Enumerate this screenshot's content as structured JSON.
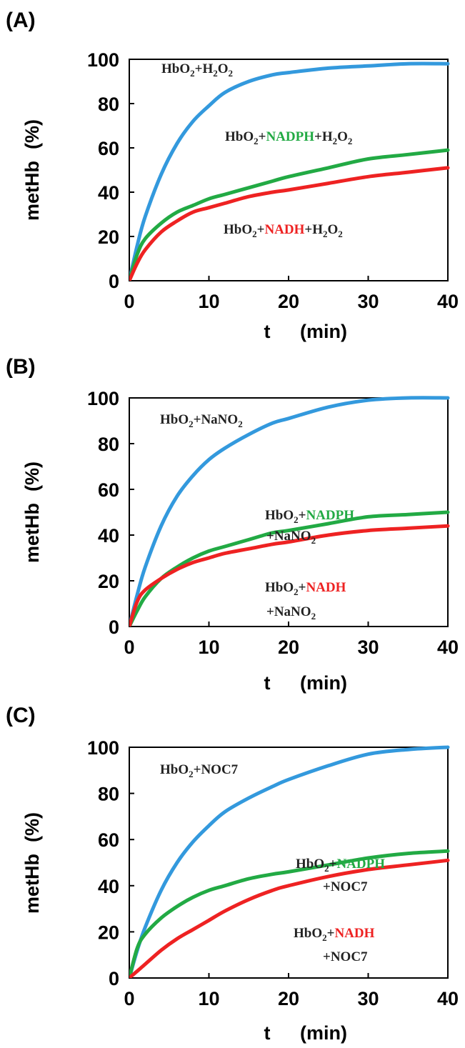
{
  "colors": {
    "H2O2_only": "#3399dd",
    "NADPH": "#22aa44",
    "NADH": "#ee2222",
    "nadph_text": "#22aa44",
    "nadh_text": "#ee2222",
    "annotation_text": "#222222"
  },
  "chart_data": [
    {
      "type": "line",
      "panel_label": "(A)",
      "xlabel": "t (min)",
      "ylabel": "metHb (%)",
      "xlim": [
        0,
        40
      ],
      "ylim": [
        0,
        100
      ],
      "xticks": [
        "0",
        "10",
        "20",
        "30",
        "40"
      ],
      "yticks": [
        "0",
        "20",
        "40",
        "60",
        "80",
        "100"
      ],
      "x": [
        0,
        1,
        2,
        4,
        6,
        8,
        10,
        12,
        15,
        18,
        20,
        25,
        30,
        35,
        40
      ],
      "series": [
        {
          "name": "HbO2+H2O2",
          "color": "H2O2_only",
          "values": [
            0,
            16,
            29,
            48,
            62,
            72,
            79,
            85,
            90,
            93,
            94,
            96,
            97,
            98,
            98
          ]
        },
        {
          "name": "HbO2+NADPH+H2O2",
          "color": "NADPH",
          "values": [
            0,
            12,
            19,
            26,
            31,
            34,
            37,
            39,
            42,
            45,
            47,
            51,
            55,
            57,
            59
          ]
        },
        {
          "name": "HbO2+NADH+H2O2",
          "color": "NADH",
          "values": [
            0,
            8,
            14,
            22,
            27,
            31,
            33,
            35,
            38,
            40,
            41,
            44,
            47,
            49,
            51
          ]
        }
      ],
      "annotations": [
        {
          "parts": [
            {
              "t": "HbO"
            },
            {
              "t": "2",
              "sub": true
            },
            {
              "t": "+H"
            },
            {
              "t": "2",
              "sub": true
            },
            {
              "t": "O"
            },
            {
              "t": "2",
              "sub": true
            }
          ]
        },
        {
          "parts": [
            {
              "t": "HbO"
            },
            {
              "t": "2",
              "sub": true
            },
            {
              "t": "+"
            },
            {
              "t": "NADPH",
              "color": "nadph_text"
            },
            {
              "t": "+H"
            },
            {
              "t": "2",
              "sub": true
            },
            {
              "t": "O"
            },
            {
              "t": "2",
              "sub": true
            }
          ]
        },
        {
          "parts": [
            {
              "t": "HbO"
            },
            {
              "t": "2",
              "sub": true
            },
            {
              "t": "+"
            },
            {
              "t": "NADH",
              "color": "nadh_text"
            },
            {
              "t": "+H"
            },
            {
              "t": "2",
              "sub": true
            },
            {
              "t": "O"
            },
            {
              "t": "2",
              "sub": true
            }
          ]
        }
      ]
    },
    {
      "type": "line",
      "panel_label": "(B)",
      "xlabel": "t (min)",
      "ylabel": "metHb (%)",
      "xlim": [
        0,
        40
      ],
      "ylim": [
        0,
        100
      ],
      "xticks": [
        "0",
        "10",
        "20",
        "30",
        "40"
      ],
      "yticks": [
        "0",
        "20",
        "40",
        "60",
        "80",
        "100"
      ],
      "x": [
        0,
        1,
        2,
        4,
        6,
        8,
        10,
        12,
        15,
        18,
        20,
        25,
        30,
        35,
        40
      ],
      "series": [
        {
          "name": "HbO2+NaNO2",
          "color": "H2O2_only",
          "values": [
            0,
            14,
            26,
            44,
            57,
            66,
            73,
            78,
            84,
            89,
            91,
            96,
            99,
            100,
            100
          ]
        },
        {
          "name": "HbO2+NADPH+NaNO2",
          "color": "NADPH",
          "values": [
            0,
            7,
            13,
            21,
            26,
            30,
            33,
            35,
            38,
            41,
            42,
            45,
            48,
            49,
            50
          ]
        },
        {
          "name": "HbO2+NADH+NaNO2",
          "color": "NADH",
          "values": [
            0,
            11,
            16,
            21,
            25,
            28,
            30,
            32,
            34,
            36,
            37,
            40,
            42,
            43,
            44
          ]
        }
      ],
      "annotations": [
        {
          "parts": [
            {
              "t": "HbO"
            },
            {
              "t": "2",
              "sub": true
            },
            {
              "t": "+NaNO"
            },
            {
              "t": "2",
              "sub": true
            }
          ]
        },
        {
          "parts": [
            {
              "t": "HbO"
            },
            {
              "t": "2",
              "sub": true
            },
            {
              "t": "+"
            },
            {
              "t": "NADPH",
              "color": "nadph_text"
            }
          ]
        },
        {
          "parts": [
            {
              "t": "+NaNO"
            },
            {
              "t": "2",
              "sub": true
            }
          ]
        },
        {
          "parts": [
            {
              "t": "HbO"
            },
            {
              "t": "2",
              "sub": true
            },
            {
              "t": "+"
            },
            {
              "t": "NADH",
              "color": "nadh_text"
            }
          ]
        },
        {
          "parts": [
            {
              "t": "+NaNO"
            },
            {
              "t": "2",
              "sub": true
            }
          ]
        }
      ]
    },
    {
      "type": "line",
      "panel_label": "(C)",
      "xlabel": "t (min)",
      "ylabel": "metHb (%)",
      "xlim": [
        0,
        40
      ],
      "ylim": [
        0,
        100
      ],
      "xticks": [
        "0",
        "10",
        "20",
        "30",
        "40"
      ],
      "yticks": [
        "0",
        "20",
        "40",
        "60",
        "80",
        "100"
      ],
      "x": [
        0,
        1,
        2,
        4,
        6,
        8,
        10,
        12,
        15,
        18,
        20,
        25,
        30,
        35,
        40
      ],
      "series": [
        {
          "name": "HbO2+NOC7",
          "color": "H2O2_only",
          "values": [
            0,
            12,
            22,
            38,
            50,
            59,
            66,
            72,
            78,
            83,
            86,
            92,
            97,
            99,
            100
          ]
        },
        {
          "name": "HbO2+NADPH+NOC7",
          "color": "NADPH",
          "values": [
            0,
            13,
            19,
            26,
            31,
            35,
            38,
            40,
            43,
            45,
            46,
            49,
            52,
            54,
            55
          ]
        },
        {
          "name": "HbO2+NADH+NOC7",
          "color": "NADH",
          "values": [
            0,
            3,
            6,
            12,
            17,
            21,
            25,
            29,
            34,
            38,
            40,
            44,
            47,
            49,
            51
          ]
        }
      ],
      "annotations": [
        {
          "parts": [
            {
              "t": "HbO"
            },
            {
              "t": "2",
              "sub": true
            },
            {
              "t": "+NOC7"
            }
          ]
        },
        {
          "parts": [
            {
              "t": "HbO"
            },
            {
              "t": "2",
              "sub": true
            },
            {
              "t": "+"
            },
            {
              "t": "NADPH",
              "color": "nadph_text"
            }
          ]
        },
        {
          "parts": [
            {
              "t": "+NOC7"
            }
          ]
        },
        {
          "parts": [
            {
              "t": "HbO"
            },
            {
              "t": "2",
              "sub": true
            },
            {
              "t": "+"
            },
            {
              "t": "NADH",
              "color": "nadh_text"
            }
          ]
        },
        {
          "parts": [
            {
              "t": "+NOC7"
            }
          ]
        }
      ]
    }
  ]
}
